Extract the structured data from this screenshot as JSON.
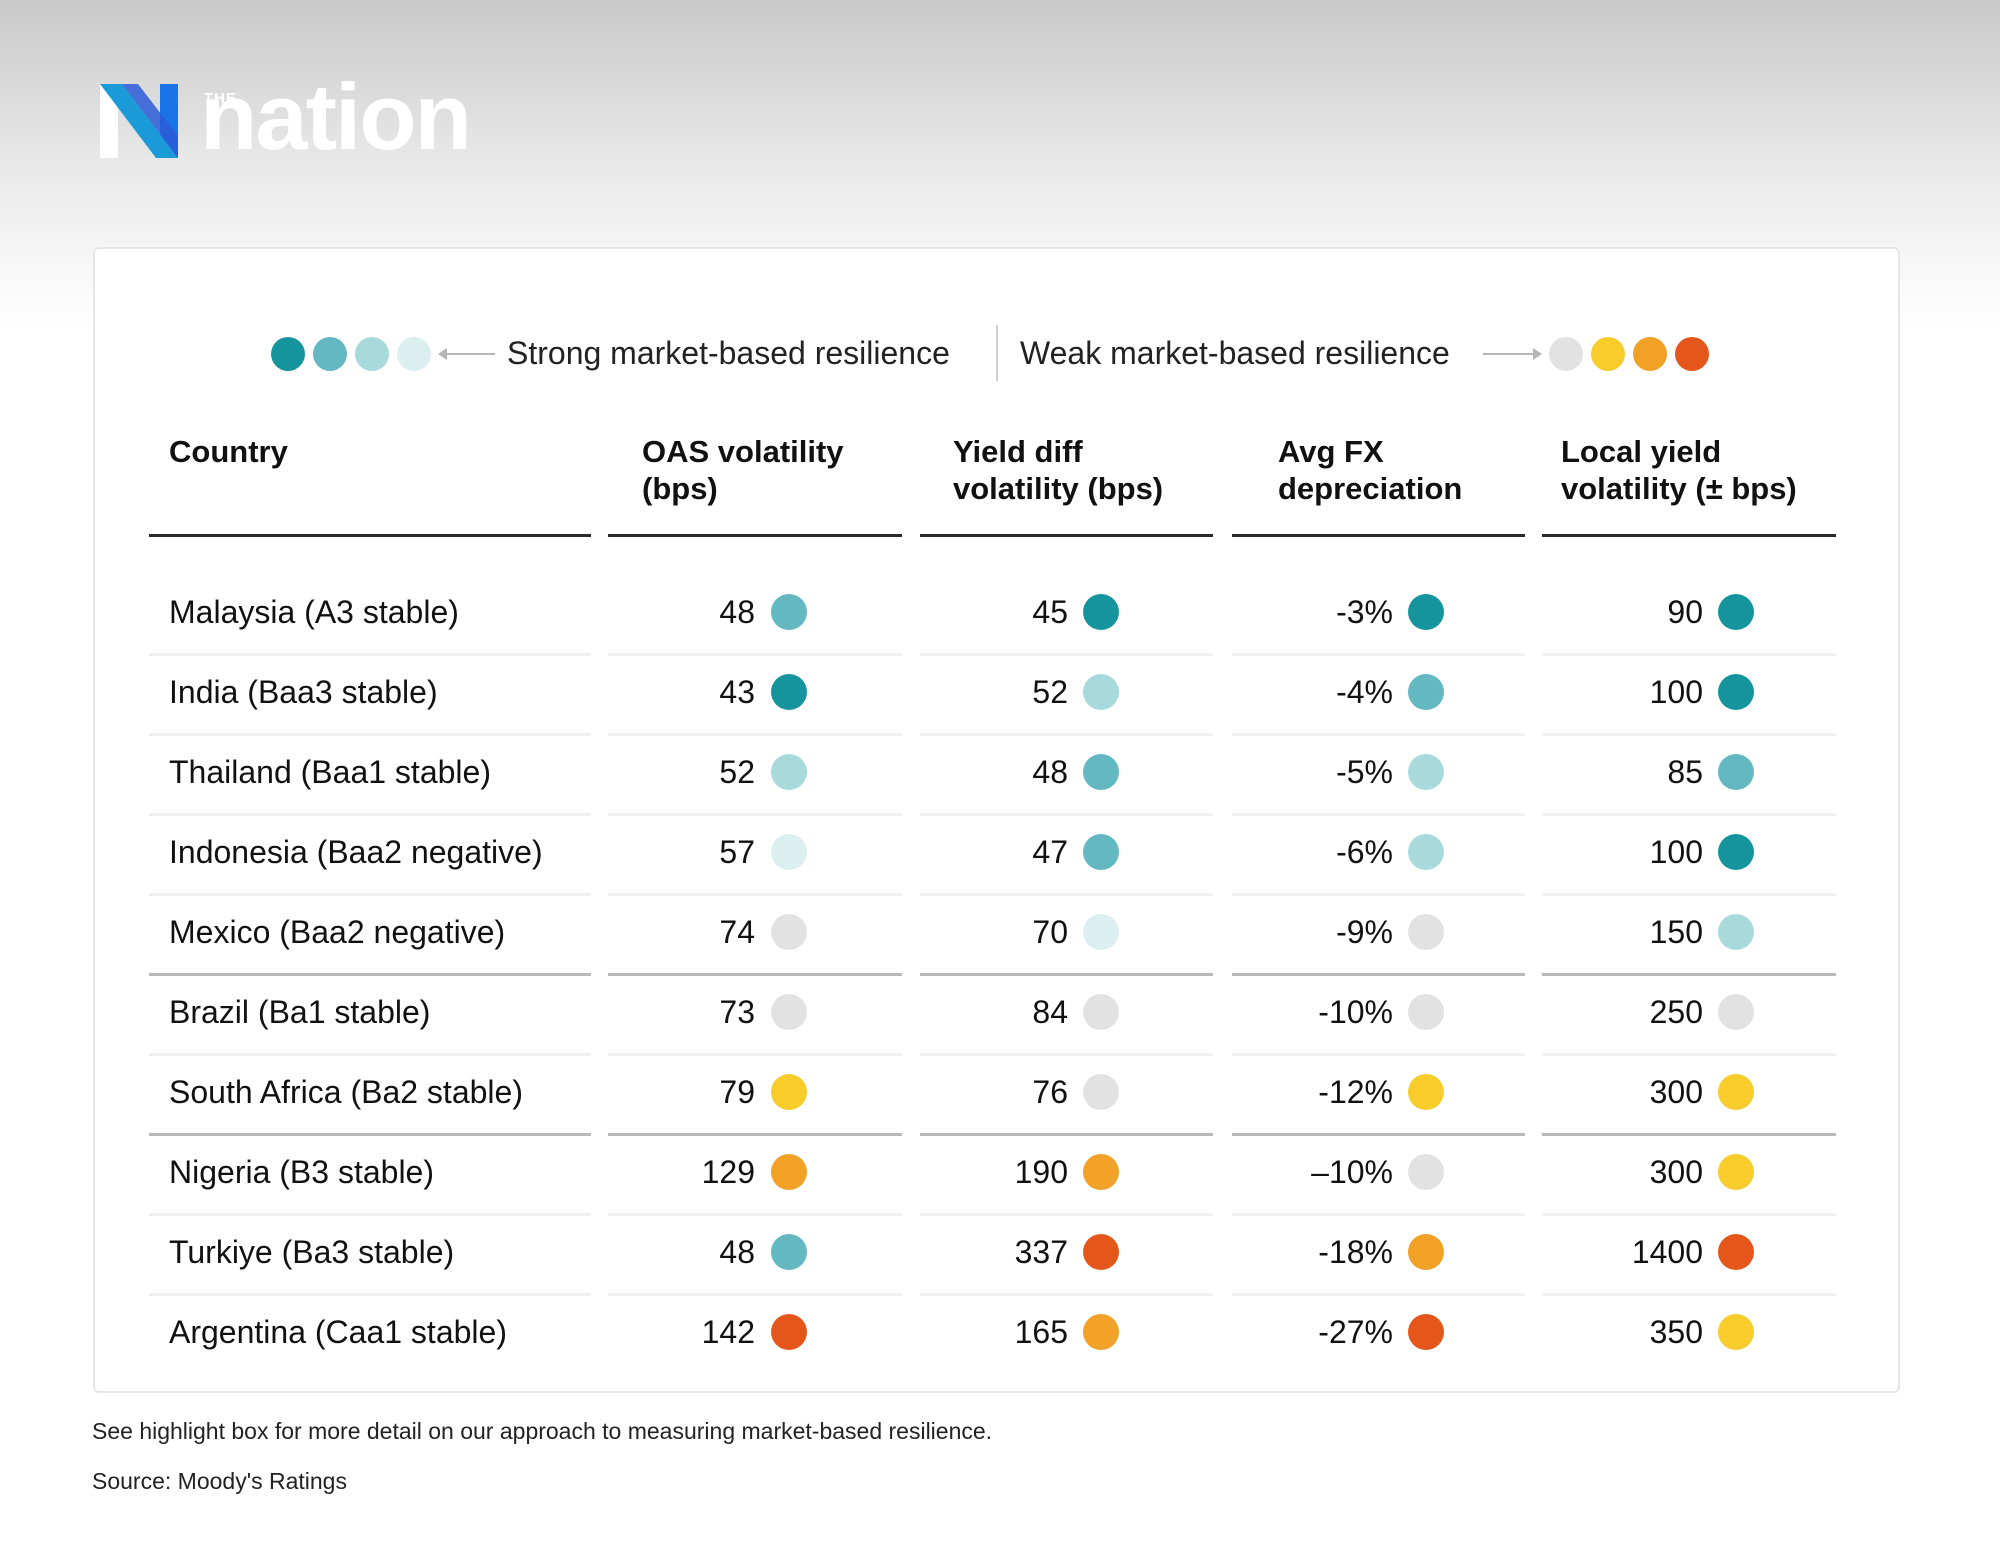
{
  "brand": {
    "the": "THE",
    "word": "nation"
  },
  "legend": {
    "strong_label": "Strong market-based resilience",
    "weak_label": "Weak market-based resilience",
    "strong_colors": [
      "#16949d",
      "#63b8c1",
      "#a8dadc",
      "#dcefef"
    ],
    "weak_colors": [
      "#e2e2e2",
      "#f8cd2b",
      "#f0a126",
      "#e5561a"
    ]
  },
  "chart_data": {
    "type": "table",
    "headers": [
      "Country",
      "OAS volatility\n(bps)",
      "Yield diff\nvolatility (bps)",
      "Avg FX\ndepreciation",
      "Local yield\nvolatility (± bps)"
    ],
    "rating_colors": {
      "s4": "#16949d",
      "s3": "#63b8c1",
      "s2": "#a8dadc",
      "s1": "#dcefef",
      "n": "#e2e2e2",
      "w1": "#f8cd2b",
      "w2": "#f0a126",
      "w3": "#e5561a"
    },
    "rows": [
      {
        "country": "Malaysia (A3 stable)",
        "cells": [
          [
            "48",
            "s3"
          ],
          [
            "45",
            "s4"
          ],
          [
            "-3%",
            "s4"
          ],
          [
            "90",
            "s4"
          ]
        ]
      },
      {
        "country": "India (Baa3 stable)",
        "cells": [
          [
            "43",
            "s4"
          ],
          [
            "52",
            "s2"
          ],
          [
            "-4%",
            "s3"
          ],
          [
            "100",
            "s4"
          ]
        ]
      },
      {
        "country": "Thailand (Baa1 stable)",
        "cells": [
          [
            "52",
            "s2"
          ],
          [
            "48",
            "s3"
          ],
          [
            "-5%",
            "s2"
          ],
          [
            "85",
            "s3"
          ]
        ]
      },
      {
        "country": "Indonesia (Baa2 negative)",
        "cells": [
          [
            "57",
            "s1"
          ],
          [
            "47",
            "s3"
          ],
          [
            "-6%",
            "s2"
          ],
          [
            "100",
            "s4"
          ]
        ]
      },
      {
        "country": "Mexico (Baa2 negative)",
        "cells": [
          [
            "74",
            "n"
          ],
          [
            "70",
            "s1"
          ],
          [
            "-9%",
            "n"
          ],
          [
            "150",
            "s2"
          ]
        ]
      },
      {
        "country": "Brazil (Ba1 stable)",
        "cells": [
          [
            "73",
            "n"
          ],
          [
            "84",
            "n"
          ],
          [
            "-10%",
            "n"
          ],
          [
            "250",
            "n"
          ]
        ]
      },
      {
        "country": "South Africa (Ba2 stable)",
        "cells": [
          [
            "79",
            "w1"
          ],
          [
            "76",
            "n"
          ],
          [
            "-12%",
            "w1"
          ],
          [
            "300",
            "w1"
          ]
        ]
      },
      {
        "country": "Nigeria (B3 stable)",
        "cells": [
          [
            "129",
            "w2"
          ],
          [
            "190",
            "w2"
          ],
          [
            "–10%",
            "n"
          ],
          [
            "300",
            "w1"
          ]
        ]
      },
      {
        "country": "Turkiye (Ba3 stable)",
        "cells": [
          [
            "48",
            "s3"
          ],
          [
            "337",
            "w3"
          ],
          [
            "-18%",
            "w2"
          ],
          [
            "1400",
            "w3"
          ]
        ]
      },
      {
        "country": "Argentina (Caa1 stable)",
        "cells": [
          [
            "142",
            "w3"
          ],
          [
            "165",
            "w2"
          ],
          [
            "-27%",
            "w3"
          ],
          [
            "350",
            "w1"
          ]
        ]
      }
    ],
    "group_breaks_after_rows": [
      4,
      6
    ]
  },
  "footer": {
    "note": "See highlight box for more detail on our approach to measuring market-based resilience.",
    "source": "Source: Moody's Ratings"
  }
}
